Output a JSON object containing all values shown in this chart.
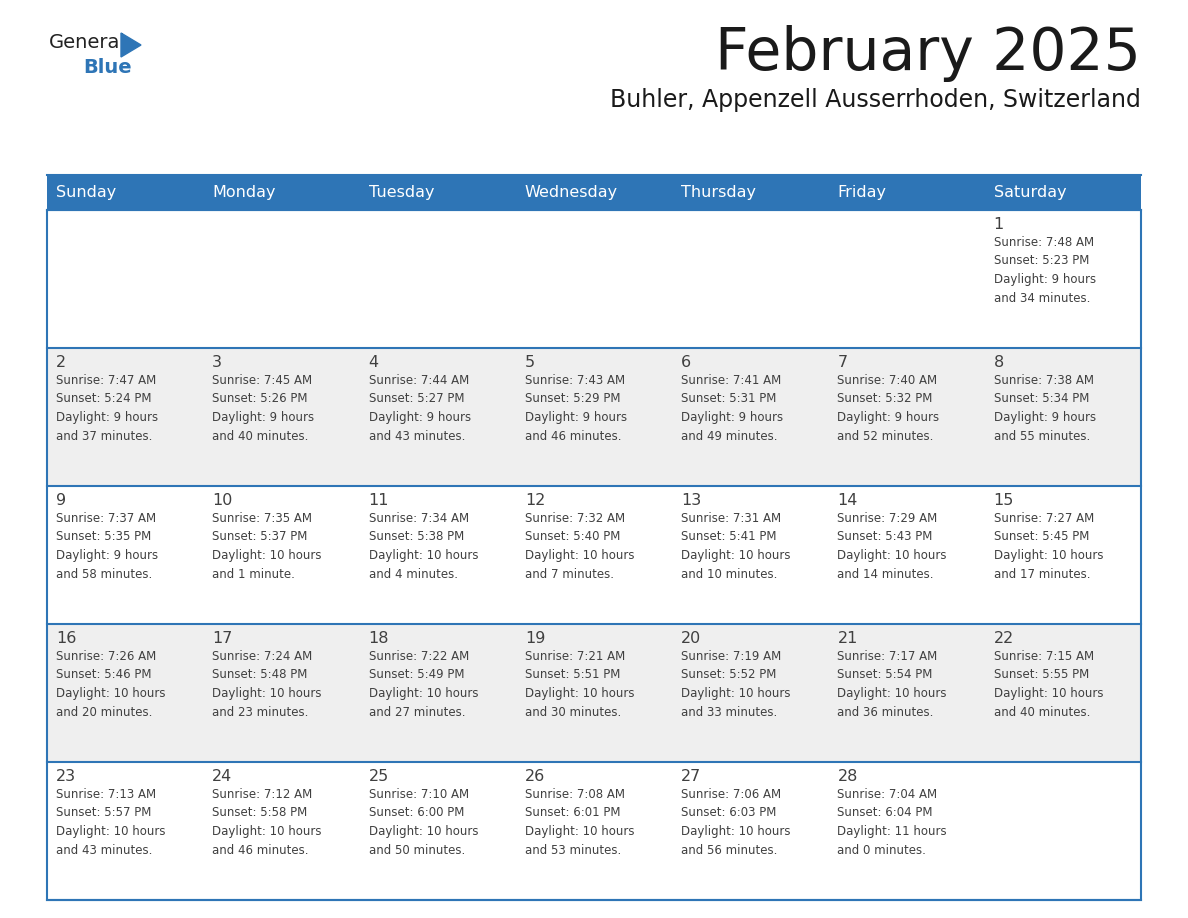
{
  "title": "February 2025",
  "subtitle": "Buhler, Appenzell Ausserrhoden, Switzerland",
  "header_color": "#2E75B6",
  "header_text_color": "#FFFFFF",
  "day_names": [
    "Sunday",
    "Monday",
    "Tuesday",
    "Wednesday",
    "Thursday",
    "Friday",
    "Saturday"
  ],
  "background_color": "#FFFFFF",
  "row_bg_colors": [
    "#FFFFFF",
    "#EFEFEF",
    "#FFFFFF",
    "#EFEFEF",
    "#FFFFFF"
  ],
  "row_line_color": "#2E75B6",
  "text_color": "#404040",
  "day_number_color": "#404040",
  "logo_general_color": "#222222",
  "logo_blue_color": "#2E75B6",
  "triangle_color": "#2E75B6",
  "calendar_data": [
    [
      {
        "day": null,
        "info": null
      },
      {
        "day": null,
        "info": null
      },
      {
        "day": null,
        "info": null
      },
      {
        "day": null,
        "info": null
      },
      {
        "day": null,
        "info": null
      },
      {
        "day": null,
        "info": null
      },
      {
        "day": 1,
        "info": "Sunrise: 7:48 AM\nSunset: 5:23 PM\nDaylight: 9 hours\nand 34 minutes."
      }
    ],
    [
      {
        "day": 2,
        "info": "Sunrise: 7:47 AM\nSunset: 5:24 PM\nDaylight: 9 hours\nand 37 minutes."
      },
      {
        "day": 3,
        "info": "Sunrise: 7:45 AM\nSunset: 5:26 PM\nDaylight: 9 hours\nand 40 minutes."
      },
      {
        "day": 4,
        "info": "Sunrise: 7:44 AM\nSunset: 5:27 PM\nDaylight: 9 hours\nand 43 minutes."
      },
      {
        "day": 5,
        "info": "Sunrise: 7:43 AM\nSunset: 5:29 PM\nDaylight: 9 hours\nand 46 minutes."
      },
      {
        "day": 6,
        "info": "Sunrise: 7:41 AM\nSunset: 5:31 PM\nDaylight: 9 hours\nand 49 minutes."
      },
      {
        "day": 7,
        "info": "Sunrise: 7:40 AM\nSunset: 5:32 PM\nDaylight: 9 hours\nand 52 minutes."
      },
      {
        "day": 8,
        "info": "Sunrise: 7:38 AM\nSunset: 5:34 PM\nDaylight: 9 hours\nand 55 minutes."
      }
    ],
    [
      {
        "day": 9,
        "info": "Sunrise: 7:37 AM\nSunset: 5:35 PM\nDaylight: 9 hours\nand 58 minutes."
      },
      {
        "day": 10,
        "info": "Sunrise: 7:35 AM\nSunset: 5:37 PM\nDaylight: 10 hours\nand 1 minute."
      },
      {
        "day": 11,
        "info": "Sunrise: 7:34 AM\nSunset: 5:38 PM\nDaylight: 10 hours\nand 4 minutes."
      },
      {
        "day": 12,
        "info": "Sunrise: 7:32 AM\nSunset: 5:40 PM\nDaylight: 10 hours\nand 7 minutes."
      },
      {
        "day": 13,
        "info": "Sunrise: 7:31 AM\nSunset: 5:41 PM\nDaylight: 10 hours\nand 10 minutes."
      },
      {
        "day": 14,
        "info": "Sunrise: 7:29 AM\nSunset: 5:43 PM\nDaylight: 10 hours\nand 14 minutes."
      },
      {
        "day": 15,
        "info": "Sunrise: 7:27 AM\nSunset: 5:45 PM\nDaylight: 10 hours\nand 17 minutes."
      }
    ],
    [
      {
        "day": 16,
        "info": "Sunrise: 7:26 AM\nSunset: 5:46 PM\nDaylight: 10 hours\nand 20 minutes."
      },
      {
        "day": 17,
        "info": "Sunrise: 7:24 AM\nSunset: 5:48 PM\nDaylight: 10 hours\nand 23 minutes."
      },
      {
        "day": 18,
        "info": "Sunrise: 7:22 AM\nSunset: 5:49 PM\nDaylight: 10 hours\nand 27 minutes."
      },
      {
        "day": 19,
        "info": "Sunrise: 7:21 AM\nSunset: 5:51 PM\nDaylight: 10 hours\nand 30 minutes."
      },
      {
        "day": 20,
        "info": "Sunrise: 7:19 AM\nSunset: 5:52 PM\nDaylight: 10 hours\nand 33 minutes."
      },
      {
        "day": 21,
        "info": "Sunrise: 7:17 AM\nSunset: 5:54 PM\nDaylight: 10 hours\nand 36 minutes."
      },
      {
        "day": 22,
        "info": "Sunrise: 7:15 AM\nSunset: 5:55 PM\nDaylight: 10 hours\nand 40 minutes."
      }
    ],
    [
      {
        "day": 23,
        "info": "Sunrise: 7:13 AM\nSunset: 5:57 PM\nDaylight: 10 hours\nand 43 minutes."
      },
      {
        "day": 24,
        "info": "Sunrise: 7:12 AM\nSunset: 5:58 PM\nDaylight: 10 hours\nand 46 minutes."
      },
      {
        "day": 25,
        "info": "Sunrise: 7:10 AM\nSunset: 6:00 PM\nDaylight: 10 hours\nand 50 minutes."
      },
      {
        "day": 26,
        "info": "Sunrise: 7:08 AM\nSunset: 6:01 PM\nDaylight: 10 hours\nand 53 minutes."
      },
      {
        "day": 27,
        "info": "Sunrise: 7:06 AM\nSunset: 6:03 PM\nDaylight: 10 hours\nand 56 minutes."
      },
      {
        "day": 28,
        "info": "Sunrise: 7:04 AM\nSunset: 6:04 PM\nDaylight: 11 hours\nand 0 minutes."
      },
      {
        "day": null,
        "info": null
      }
    ]
  ]
}
